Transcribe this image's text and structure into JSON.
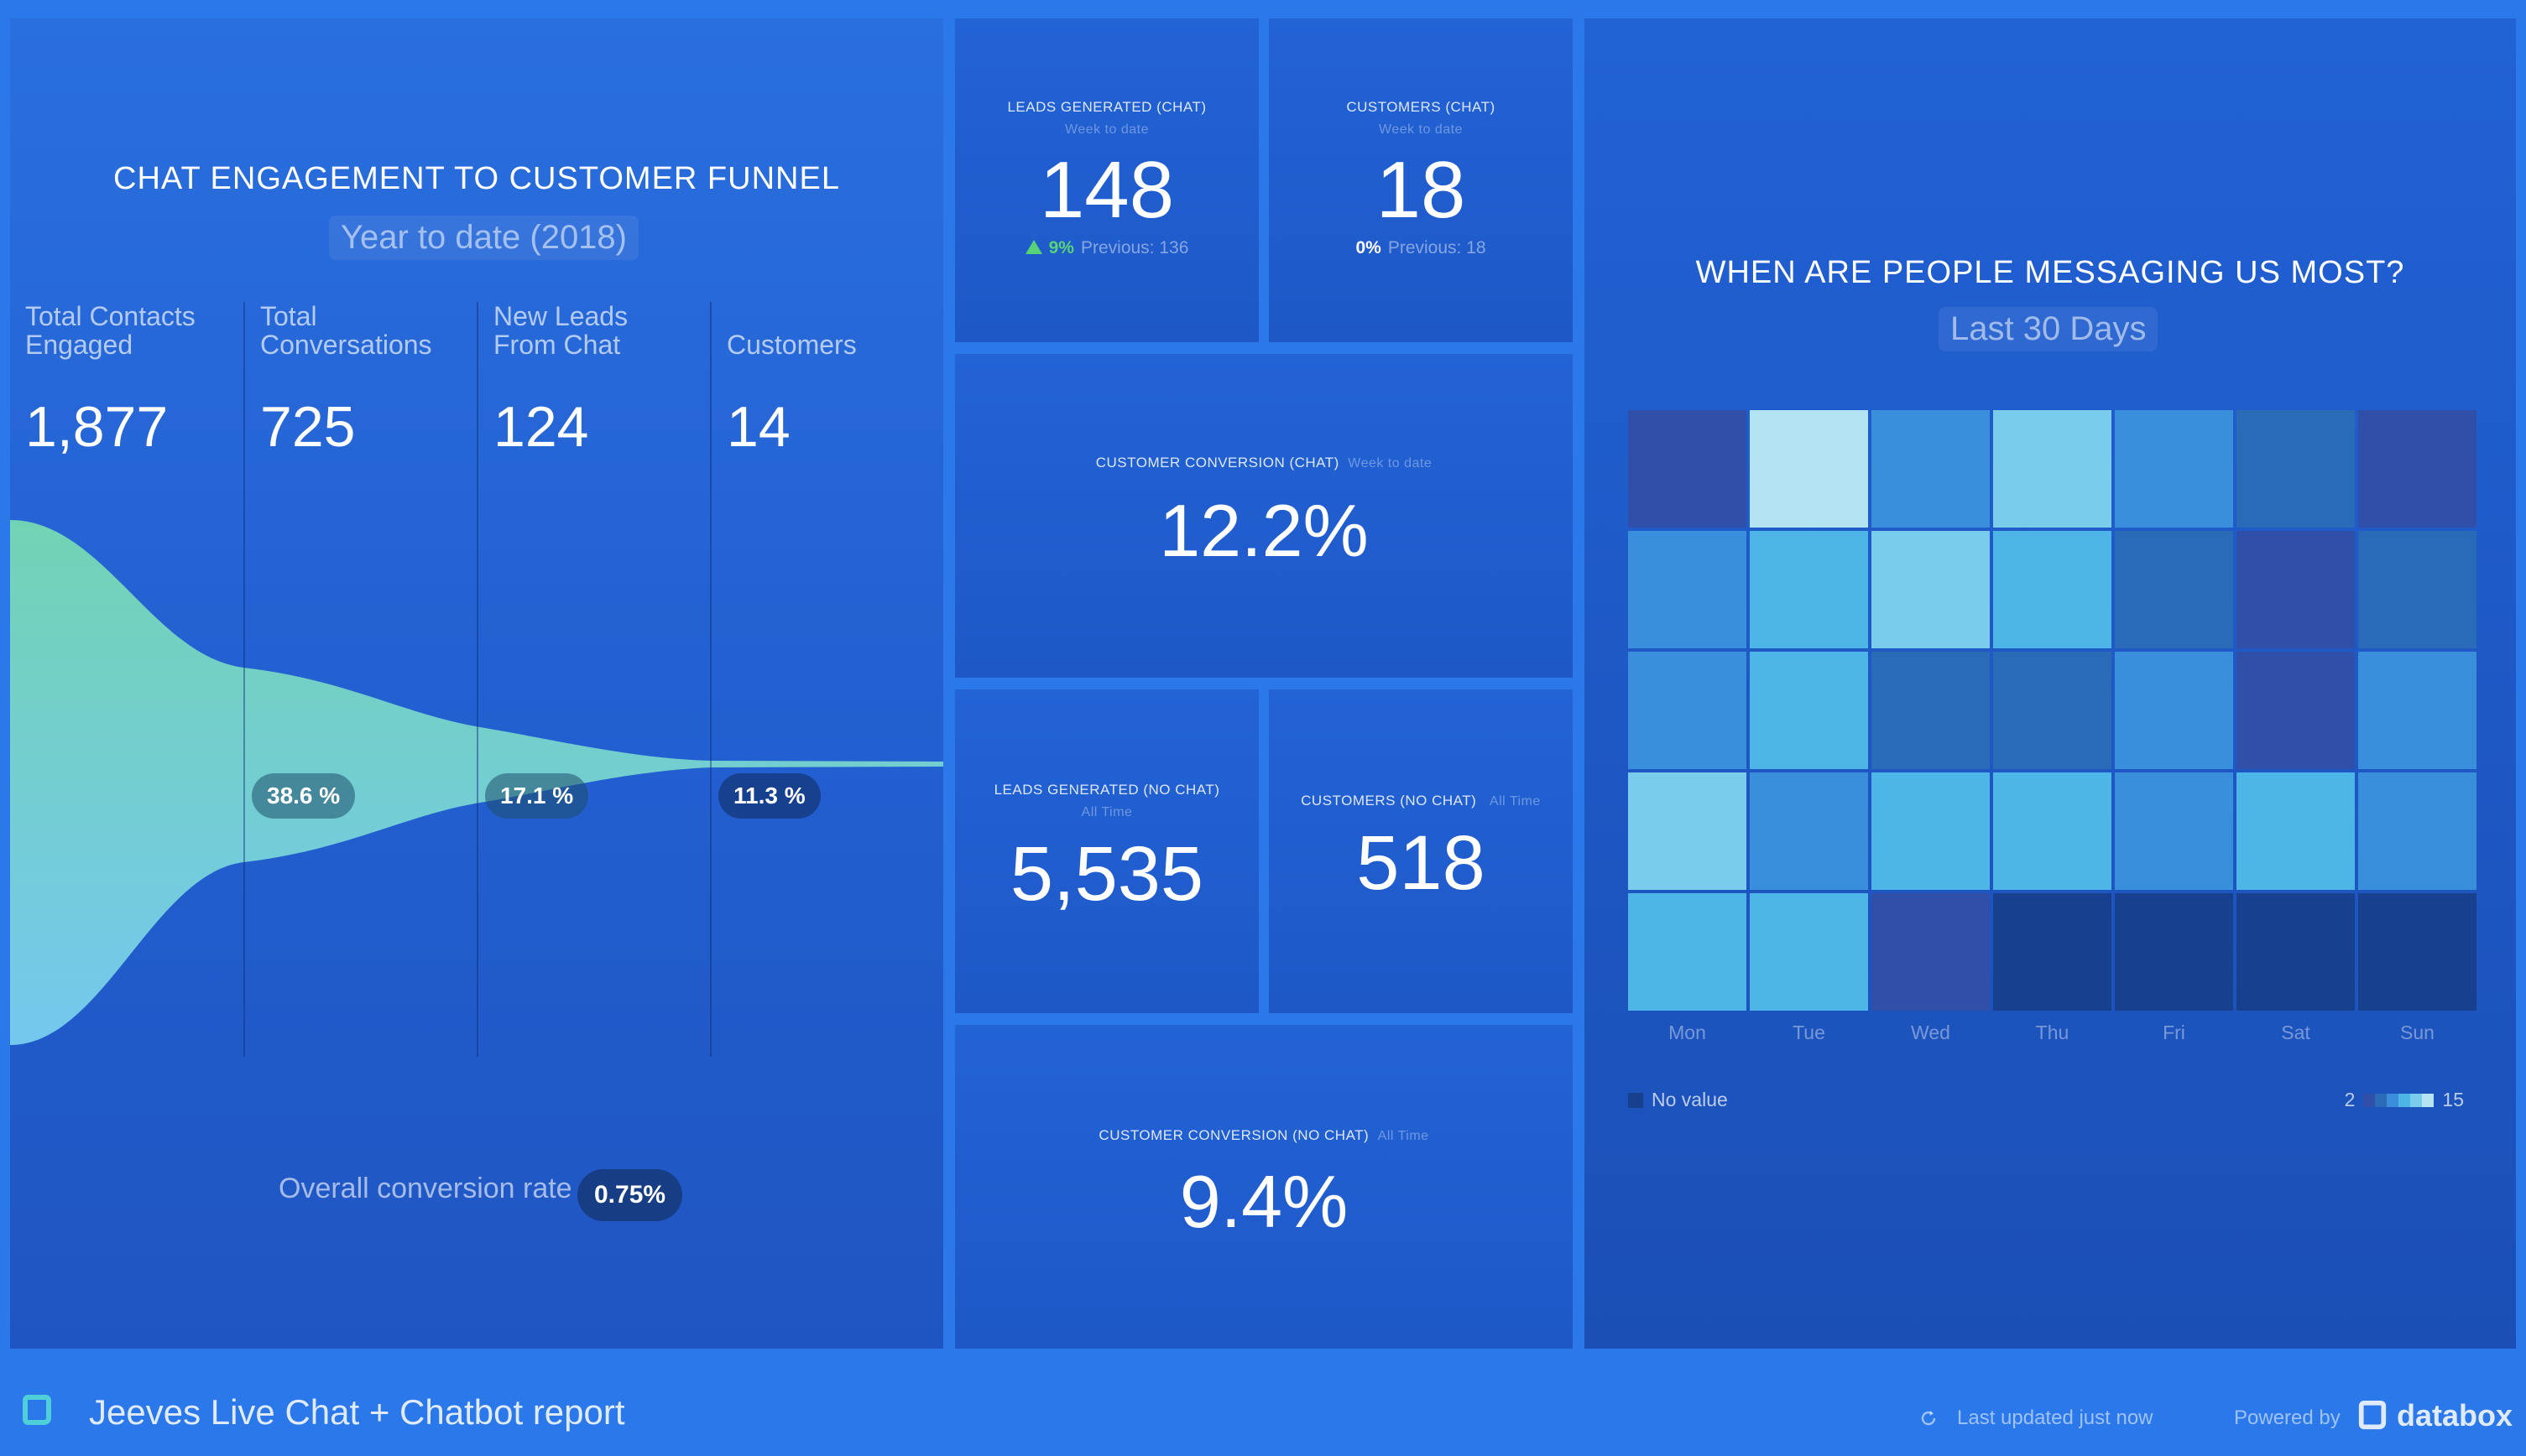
{
  "colors": {
    "background": "#2a78ea",
    "funnel_fill_top": "#72d3b4",
    "funnel_fill_bottom": "#74c8ee",
    "positive_change": "#58d37a",
    "heat_no_value": "#17418f"
  },
  "funnel": {
    "title": "CHAT ENGAGEMENT TO CUSTOMER FUNNEL",
    "subtitle": "Year to date (2018)",
    "stages": [
      {
        "label_line1": "Total Contacts",
        "label_line2": "Engaged",
        "value": "1,877"
      },
      {
        "label_line1": "Total",
        "label_line2": "Conversations",
        "value": "725"
      },
      {
        "label_line1": "New Leads",
        "label_line2": "From Chat",
        "value": "124"
      },
      {
        "label_line1": "",
        "label_line2": "Customers",
        "value": "14"
      }
    ],
    "step_rates": [
      "38.6 %",
      "17.1 %",
      "11.3 %"
    ],
    "overall_label": "Overall conversion rate",
    "overall_value": "0.75%"
  },
  "tiles": {
    "leads_chat": {
      "title": "LEADS GENERATED (CHAT)",
      "period": "Week to date",
      "value": "148",
      "change": "9%",
      "change_direction": "up",
      "previous": "Previous: 136"
    },
    "customers_chat": {
      "title": "CUSTOMERS (CHAT)",
      "period": "Week to date",
      "value": "18",
      "change": "0%",
      "previous": "Previous: 18"
    },
    "conversion_chat": {
      "title": "CUSTOMER CONVERSION (CHAT)",
      "period": "Week to date",
      "value": "12.2%"
    },
    "leads_nochat": {
      "title": "LEADS GENERATED (NO CHAT)",
      "period": "All Time",
      "value": "5,535"
    },
    "customers_nochat": {
      "title": "CUSTOMERS (NO CHAT)",
      "period": "All Time",
      "value": "518"
    },
    "conversion_nochat": {
      "title": "CUSTOMER CONVERSION (NO CHAT)",
      "period": "All Time",
      "value": "9.4%"
    }
  },
  "heatmap": {
    "title": "WHEN ARE PEOPLE MESSAGING US MOST?",
    "subtitle": "Last 30 Days",
    "days": [
      "Mon",
      "Tue",
      "Wed",
      "Thu",
      "Fri",
      "Sat",
      "Sun"
    ],
    "rows": [
      [
        "#2f4fa8",
        "#b4e4f3",
        "#3a8fdd",
        "#79ccec",
        "#3a8fdd",
        "#2a6bb8",
        "#2f4fa8"
      ],
      [
        "#3a8fdd",
        "#4db6e6",
        "#79ccec",
        "#4db6e6",
        "#2a6bb8",
        "#2f4fa8",
        "#2a6bb8"
      ],
      [
        "#3a8fdd",
        "#4db6e6",
        "#2a6bb8",
        "#2a6bb8",
        "#3a8fdd",
        "#2f4fa8",
        "#3a8fdd"
      ],
      [
        "#79ccec",
        "#3a8fdd",
        "#4db6e6",
        "#4db6e6",
        "#3a8fdd",
        "#4db6e6",
        "#3a8fdd"
      ],
      [
        "#4db6e6",
        "#4db6e6",
        "#2f4fa8",
        "#17418f",
        "#17418f",
        "#17418f",
        "#17418f"
      ]
    ],
    "legend_no_value": "No value",
    "legend_min": "2",
    "legend_max": "15",
    "legend_scale": [
      "#2f4fa8",
      "#2a6bb8",
      "#3a8fdd",
      "#4db6e6",
      "#79ccec",
      "#b4e4f3"
    ]
  },
  "footer": {
    "report_title": "Jeeves Live Chat + Chatbot report",
    "last_updated": "Last updated just now",
    "powered_by": "Powered by",
    "brand": "databox",
    "logo_icon": "databox-logo-icon",
    "refresh_icon": "refresh-icon"
  }
}
